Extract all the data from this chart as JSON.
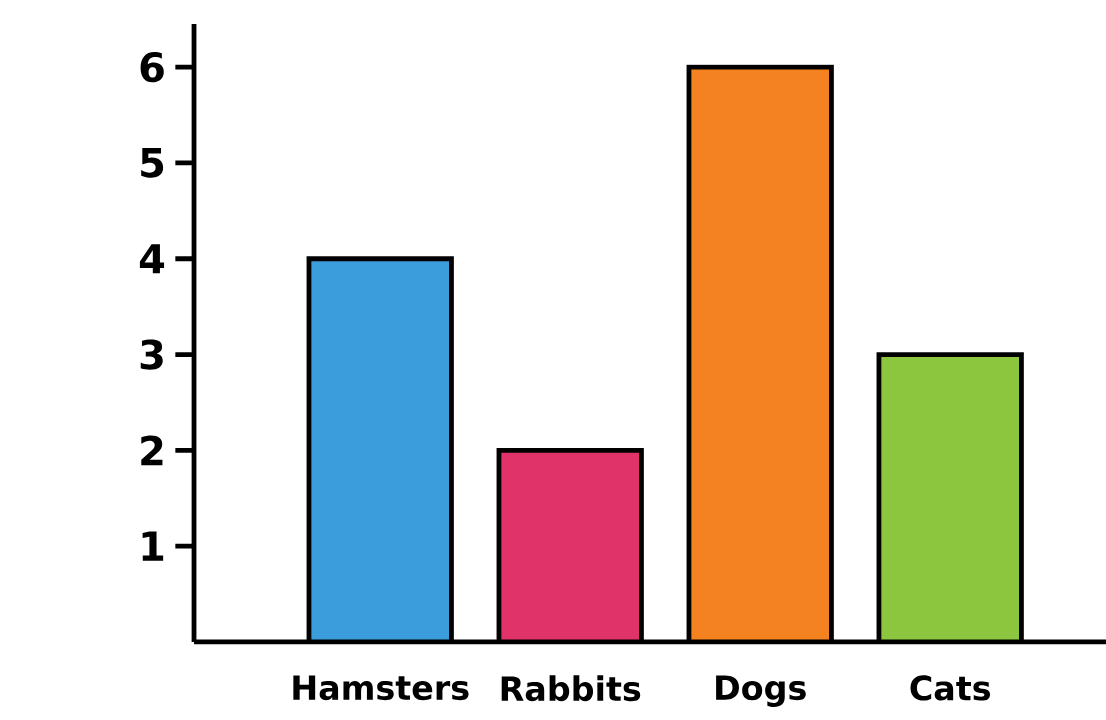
{
  "chart_data": {
    "type": "bar",
    "categories": [
      "Hamsters",
      "Rabbits",
      "Dogs",
      "Cats"
    ],
    "values": [
      4,
      2,
      6,
      3
    ],
    "colors": [
      "#3b9ddb",
      "#e0336a",
      "#f58220",
      "#8cc63f"
    ],
    "ylim": [
      0,
      6.45
    ],
    "yticks": [
      1,
      2,
      3,
      4,
      5,
      6
    ],
    "grid": false
  }
}
